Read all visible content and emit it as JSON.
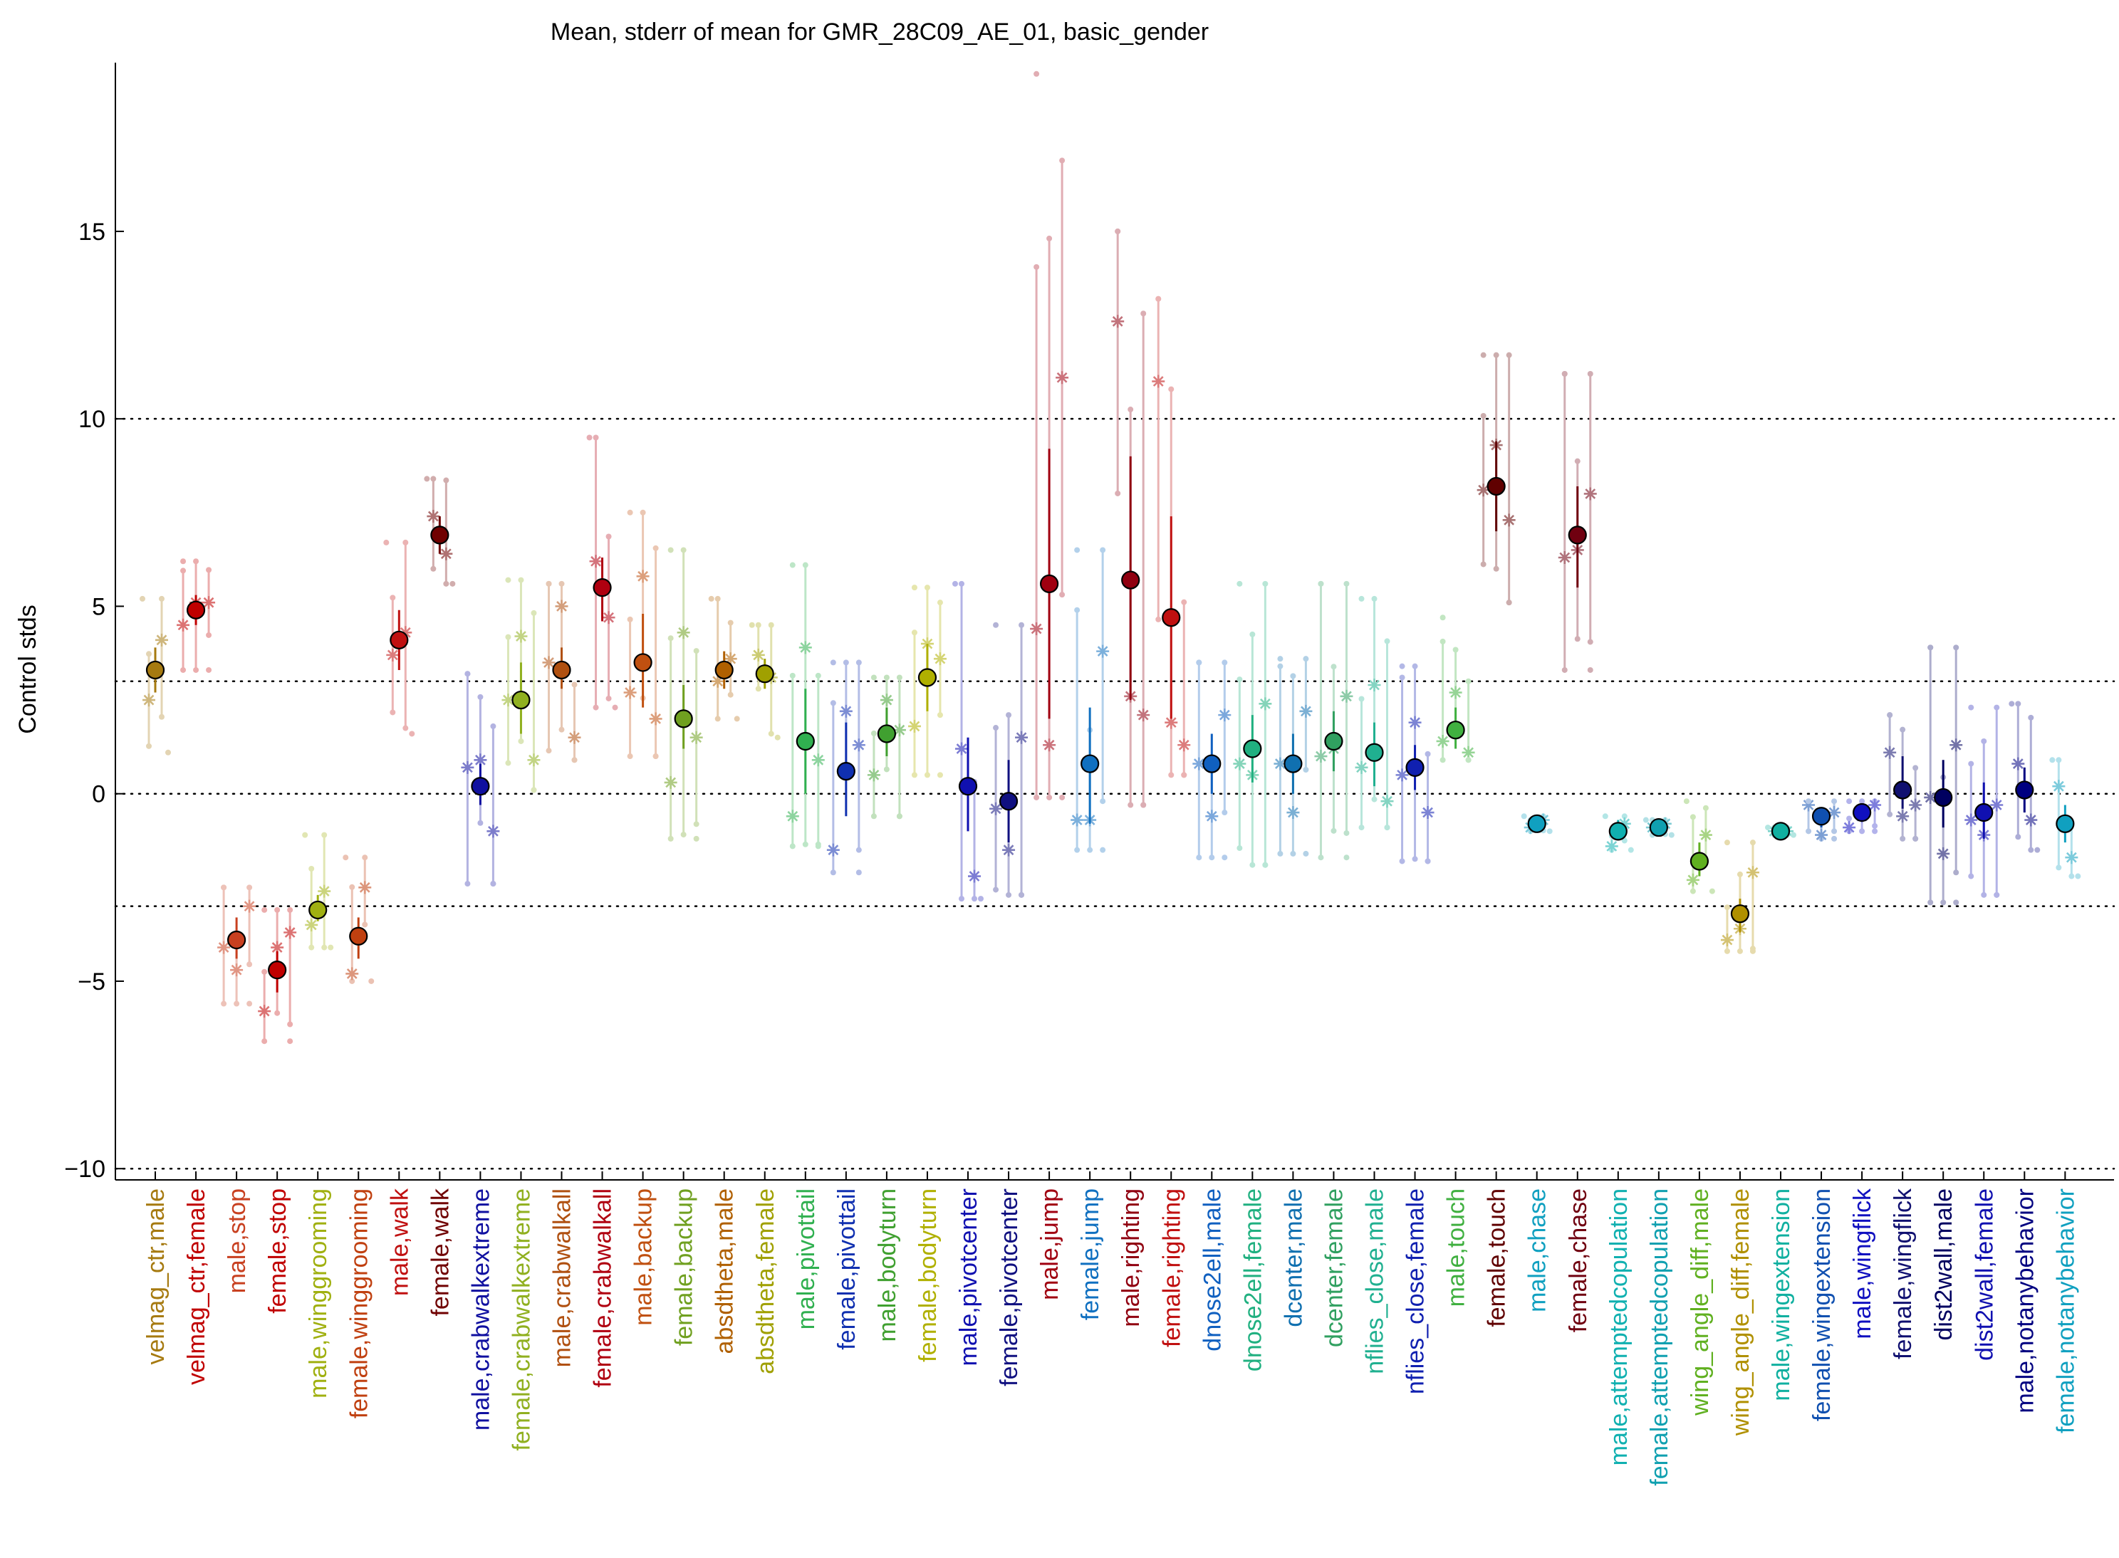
{
  "chart_data": {
    "type": "scatter",
    "title": "Mean, stderr of mean for GMR_28C09_AE_01, basic_gender",
    "xlabel": "",
    "ylabel": "Control stds",
    "ylim": [
      -10.3,
      19.5
    ],
    "yticks": [
      -10,
      -5,
      0,
      5,
      10,
      15
    ],
    "grid": "dotted horizontal lines at -10, -3, 0, 3, 10",
    "reference_lines": [
      -10,
      -3,
      0,
      3,
      10
    ],
    "categories": [
      {
        "label": "velmag_ctr,male",
        "color": "#a67a10",
        "mean": 3.3,
        "sem_low": 2.7,
        "sem_high": 3.9,
        "stars": [
          2.5,
          4.1
        ],
        "range_low": 1.1,
        "range_high": 5.2
      },
      {
        "label": "velmag_ctr,female",
        "color": "#c00000",
        "mean": 4.9,
        "sem_low": 4.5,
        "sem_high": 5.3,
        "stars": [
          4.5,
          5.1,
          5.1
        ],
        "range_low": 3.3,
        "range_high": 6.2
      },
      {
        "label": "male,stop",
        "color": "#c84020",
        "mean": -3.9,
        "sem_low": -4.4,
        "sem_high": -3.3,
        "stars": [
          -4.1,
          -4.7,
          -3.0
        ],
        "range_low": -5.6,
        "range_high": -2.5
      },
      {
        "label": "female,stop",
        "color": "#c00000",
        "mean": -4.7,
        "sem_low": -5.3,
        "sem_high": -4.2,
        "stars": [
          -5.8,
          -4.1,
          -3.7
        ],
        "range_low": -6.6,
        "range_high": -3.1
      },
      {
        "label": "male,winggrooming",
        "color": "#a0b010",
        "mean": -3.1,
        "sem_low": -3.4,
        "sem_high": -2.7,
        "stars": [
          -3.5,
          -2.6
        ],
        "range_low": -4.1,
        "range_high": -1.1
      },
      {
        "label": "female,winggrooming",
        "color": "#c04010",
        "mean": -3.8,
        "sem_low": -4.4,
        "sem_high": -3.3,
        "stars": [
          -4.8,
          -2.5
        ],
        "range_low": -5.0,
        "range_high": -1.7
      },
      {
        "label": "male,walk",
        "color": "#c01010",
        "mean": 4.1,
        "sem_low": 3.3,
        "sem_high": 4.9,
        "stars": [
          3.7,
          4.3
        ],
        "range_low": 1.6,
        "range_high": 6.7
      },
      {
        "label": "female,walk",
        "color": "#700000",
        "mean": 6.9,
        "sem_low": 6.4,
        "sem_high": 7.4,
        "stars": [
          7.4,
          6.4
        ],
        "range_low": 5.6,
        "range_high": 8.4
      },
      {
        "label": "male,crabwalkextreme",
        "color": "#1010a0",
        "mean": 0.2,
        "sem_low": -0.3,
        "sem_high": 0.8,
        "stars": [
          0.7,
          0.9,
          -1.0
        ],
        "range_low": -2.4,
        "range_high": 3.2
      },
      {
        "label": "female,crabwalkextreme",
        "color": "#90b020",
        "mean": 2.5,
        "sem_low": 1.6,
        "sem_high": 3.5,
        "stars": [
          2.5,
          4.2,
          0.9
        ],
        "range_low": 0.1,
        "range_high": 5.7
      },
      {
        "label": "male,crabwalkall",
        "color": "#b05010",
        "mean": 3.3,
        "sem_low": 2.8,
        "sem_high": 3.9,
        "stars": [
          3.5,
          5.0,
          1.5
        ],
        "range_low": 0.9,
        "range_high": 5.6
      },
      {
        "label": "female,crabwalkall",
        "color": "#b00010",
        "mean": 5.5,
        "sem_low": 4.6,
        "sem_high": 6.3,
        "stars": [
          6.2,
          4.7
        ],
        "range_low": 2.3,
        "range_high": 9.5
      },
      {
        "label": "male,backup",
        "color": "#c05010",
        "mean": 3.5,
        "sem_low": 2.3,
        "sem_high": 4.8,
        "stars": [
          2.7,
          5.8,
          2.0
        ],
        "range_low": 1.0,
        "range_high": 7.5
      },
      {
        "label": "female,backup",
        "color": "#70a020",
        "mean": 2.0,
        "sem_low": 1.2,
        "sem_high": 2.9,
        "stars": [
          0.3,
          4.3,
          1.5
        ],
        "range_low": -1.2,
        "range_high": 6.5
      },
      {
        "label": "absdtheta,male",
        "color": "#b06000",
        "mean": 3.3,
        "sem_low": 2.8,
        "sem_high": 3.8,
        "stars": [
          3.0,
          3.6
        ],
        "range_low": 2.0,
        "range_high": 5.2
      },
      {
        "label": "absdtheta,female",
        "color": "#a0a000",
        "mean": 3.2,
        "sem_low": 2.8,
        "sem_high": 3.6,
        "stars": [
          3.7,
          3.1
        ],
        "range_low": 1.5,
        "range_high": 4.5
      },
      {
        "label": "male,pivottail",
        "color": "#30b050",
        "mean": 1.4,
        "sem_low": 0.0,
        "sem_high": 2.8,
        "stars": [
          -0.6,
          3.9,
          0.9
        ],
        "range_low": -1.4,
        "range_high": 6.1
      },
      {
        "label": "female,pivottail",
        "color": "#1030b0",
        "mean": 0.6,
        "sem_low": -0.6,
        "sem_high": 1.9,
        "stars": [
          -1.5,
          2.2,
          1.3
        ],
        "range_low": -2.1,
        "range_high": 3.5
      },
      {
        "label": "male,bodyturn",
        "color": "#40a030",
        "mean": 1.6,
        "sem_low": 1.0,
        "sem_high": 2.3,
        "stars": [
          0.5,
          2.5,
          1.7
        ],
        "range_low": -0.6,
        "range_high": 3.1
      },
      {
        "label": "female,bodyturn",
        "color": "#b0b000",
        "mean": 3.1,
        "sem_low": 2.2,
        "sem_high": 4.0,
        "stars": [
          1.8,
          4.0,
          3.6
        ],
        "range_low": 0.5,
        "range_high": 5.5
      },
      {
        "label": "male,pivotcenter",
        "color": "#1010b0",
        "mean": 0.2,
        "sem_low": -1.0,
        "sem_high": 1.5,
        "stars": [
          1.2,
          -2.2
        ],
        "range_low": -2.8,
        "range_high": 5.6
      },
      {
        "label": "female,pivotcenter",
        "color": "#101080",
        "mean": -0.2,
        "sem_low": -1.3,
        "sem_high": 0.9,
        "stars": [
          -0.4,
          -1.5,
          1.5
        ],
        "range_low": -2.7,
        "range_high": 4.5
      },
      {
        "label": "male,jump",
        "color": "#a00010",
        "mean": 5.6,
        "sem_low": 2.0,
        "sem_high": 9.2,
        "stars": [
          4.4,
          1.3,
          11.1
        ],
        "range_low": -0.1,
        "range_high": 19.2
      },
      {
        "label": "female,jump",
        "color": "#1070c0",
        "mean": 0.8,
        "sem_low": -0.8,
        "sem_high": 2.3,
        "stars": [
          -0.7,
          -0.7,
          3.8
        ],
        "range_low": -1.5,
        "range_high": 6.5
      },
      {
        "label": "male,righting",
        "color": "#900010",
        "mean": 5.7,
        "sem_low": 2.5,
        "sem_high": 9.0,
        "stars": [
          12.6,
          2.6,
          2.1
        ],
        "range_low": -0.3,
        "range_high": 15.0
      },
      {
        "label": "female,righting",
        "color": "#c01010",
        "mean": 4.7,
        "sem_low": 2.0,
        "sem_high": 7.4,
        "stars": [
          11.0,
          1.9,
          1.3
        ],
        "range_low": 0.5,
        "range_high": 13.2
      },
      {
        "label": "dnose2ell,male",
        "color": "#1060c0",
        "mean": 0.8,
        "sem_low": 0.0,
        "sem_high": 1.6,
        "stars": [
          0.8,
          -0.6,
          2.1
        ],
        "range_low": -1.7,
        "range_high": 3.5
      },
      {
        "label": "dnose2ell,female",
        "color": "#20b080",
        "mean": 1.2,
        "sem_low": 0.3,
        "sem_high": 2.1,
        "stars": [
          0.8,
          0.5,
          2.4
        ],
        "range_low": -1.9,
        "range_high": 5.6
      },
      {
        "label": "dcenter,male",
        "color": "#1070b0",
        "mean": 0.8,
        "sem_low": 0.0,
        "sem_high": 1.6,
        "stars": [
          0.8,
          -0.5,
          2.2
        ],
        "range_low": -1.6,
        "range_high": 3.6
      },
      {
        "label": "dcenter,female",
        "color": "#30a060",
        "mean": 1.4,
        "sem_low": 0.6,
        "sem_high": 2.2,
        "stars": [
          1.0,
          1.2,
          2.6
        ],
        "range_low": -1.7,
        "range_high": 5.6
      },
      {
        "label": "nflies_close,male",
        "color": "#20b090",
        "mean": 1.1,
        "sem_low": 0.2,
        "sem_high": 1.9,
        "stars": [
          0.7,
          2.9,
          -0.2
        ],
        "range_low": -0.9,
        "range_high": 5.2
      },
      {
        "label": "nflies_close,female",
        "color": "#1020b0",
        "mean": 0.7,
        "sem_low": 0.1,
        "sem_high": 1.3,
        "stars": [
          0.5,
          1.9,
          -0.5
        ],
        "range_low": -1.8,
        "range_high": 3.4
      },
      {
        "label": "male,touch",
        "color": "#40b040",
        "mean": 1.7,
        "sem_low": 1.2,
        "sem_high": 2.3,
        "stars": [
          1.4,
          2.7,
          1.1
        ],
        "range_low": 0.9,
        "range_high": 4.7
      },
      {
        "label": "female,touch",
        "color": "#600000",
        "mean": 8.2,
        "sem_low": 7.0,
        "sem_high": 9.4,
        "stars": [
          8.1,
          9.3,
          7.3
        ],
        "range_low": 5.1,
        "range_high": 11.7
      },
      {
        "label": "male,chase",
        "color": "#10a0c0",
        "mean": -0.8,
        "sem_low": -0.9,
        "sem_high": -0.6,
        "stars": [
          -0.9,
          -0.7
        ],
        "range_low": -1.0,
        "range_high": -0.6
      },
      {
        "label": "female,chase",
        "color": "#700010",
        "mean": 6.9,
        "sem_low": 5.5,
        "sem_high": 8.2,
        "stars": [
          6.3,
          6.5,
          8.0
        ],
        "range_low": 3.3,
        "range_high": 11.2
      },
      {
        "label": "male,attemptedcopulation",
        "color": "#10b0b0",
        "mean": -1.0,
        "sem_low": -1.2,
        "sem_high": -0.7,
        "stars": [
          -1.4,
          -0.8
        ],
        "range_low": -1.5,
        "range_high": -0.6
      },
      {
        "label": "female,attemptedcopulation",
        "color": "#10a0b0",
        "mean": -0.9,
        "sem_low": -1.1,
        "sem_high": -0.7,
        "stars": [
          -0.9,
          -0.8
        ],
        "range_low": -1.1,
        "range_high": -0.7
      },
      {
        "label": "wing_angle_diff,male",
        "color": "#60b020",
        "mean": -1.8,
        "sem_low": -2.2,
        "sem_high": -1.3,
        "stars": [
          -2.3,
          -1.1
        ],
        "range_low": -2.6,
        "range_high": -0.2
      },
      {
        "label": "wing_angle_diff,female",
        "color": "#b09000",
        "mean": -3.2,
        "sem_low": -3.7,
        "sem_high": -2.8,
        "stars": [
          -3.9,
          -3.6,
          -2.1
        ],
        "range_low": -4.2,
        "range_high": -1.3
      },
      {
        "label": "male,wingextension",
        "color": "#10b0a0",
        "mean": -1.0,
        "sem_low": -1.1,
        "sem_high": -0.9,
        "stars": [
          -1.0,
          -1.0
        ],
        "range_low": -1.1,
        "range_high": -0.9
      },
      {
        "label": "female,wingextension",
        "color": "#1050b0",
        "mean": -0.6,
        "sem_low": -0.9,
        "sem_high": -0.4,
        "stars": [
          -0.3,
          -1.1,
          -0.5
        ],
        "range_low": -1.2,
        "range_high": -0.2
      },
      {
        "label": "male,wingflick",
        "color": "#1010c0",
        "mean": -0.5,
        "sem_low": -0.7,
        "sem_high": -0.3,
        "stars": [
          -0.9,
          -0.6,
          -0.3
        ],
        "range_low": -1.0,
        "range_high": -0.2
      },
      {
        "label": "female,wingflick",
        "color": "#101070",
        "mean": 0.1,
        "sem_low": -0.4,
        "sem_high": 1.0,
        "stars": [
          1.1,
          -0.6,
          -0.3
        ],
        "range_low": -1.2,
        "range_high": 2.1
      },
      {
        "label": "dist2wall,male",
        "color": "#000060",
        "mean": -0.1,
        "sem_low": -0.9,
        "sem_high": 0.9,
        "stars": [
          -0.1,
          -1.6,
          1.3
        ],
        "range_low": -2.9,
        "range_high": 3.9
      },
      {
        "label": "dist2wall,female",
        "color": "#1010b0",
        "mean": -0.5,
        "sem_low": -1.2,
        "sem_high": 0.3,
        "stars": [
          -0.7,
          -1.1,
          -0.3
        ],
        "range_low": -2.7,
        "range_high": 2.3
      },
      {
        "label": "male,notanybehavior",
        "color": "#000080",
        "mean": 0.1,
        "sem_low": -0.5,
        "sem_high": 0.7,
        "stars": [
          0.8,
          -0.7
        ],
        "range_low": -1.5,
        "range_high": 2.4
      },
      {
        "label": "female,notanybehavior",
        "color": "#10a0c0",
        "mean": -0.8,
        "sem_low": -1.3,
        "sem_high": -0.3,
        "stars": [
          0.2,
          -1.7
        ],
        "range_low": -2.2,
        "range_high": 0.9
      }
    ]
  }
}
